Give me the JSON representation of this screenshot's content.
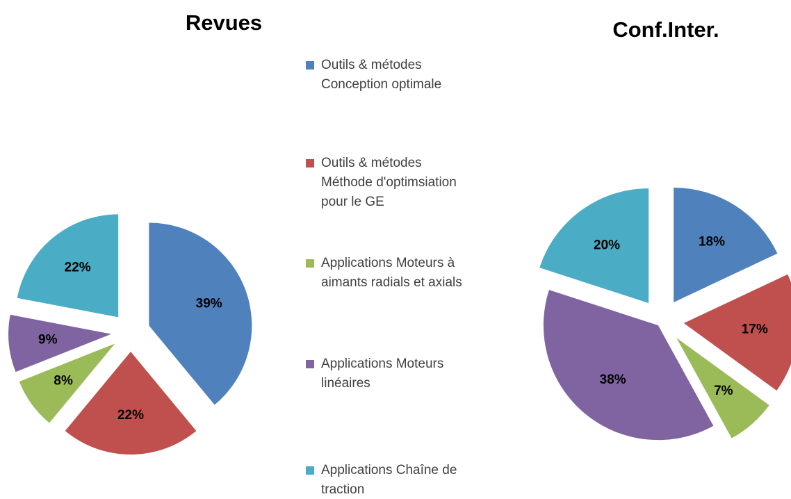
{
  "chart_data": [
    {
      "type": "pie",
      "title": "Revues",
      "categories": [
        "Outils & métodes Conception optimale",
        "Outils & métodes Méthode d'optimsiation pour le GE",
        "Applications Moteurs à aimants radials et axials",
        "Applications Moteurs linéaires",
        "Applications Chaîne de traction"
      ],
      "values": [
        39,
        22,
        8,
        9,
        22
      ],
      "value_labels": [
        "39%",
        "22%",
        "8%",
        "9%",
        "22%"
      ],
      "colors": [
        "#4f81bd",
        "#c0504d",
        "#9bbb59",
        "#8064a2",
        "#4bacc6"
      ]
    },
    {
      "type": "pie",
      "title": "Conf.Inter.",
      "values": [
        18,
        17,
        7,
        38,
        20
      ],
      "value_labels": [
        "18%",
        "17%",
        "7%",
        "38%",
        "20%"
      ],
      "colors": [
        "#4f81bd",
        "#c0504d",
        "#9bbb59",
        "#8064a2",
        "#4bacc6"
      ]
    }
  ]
}
